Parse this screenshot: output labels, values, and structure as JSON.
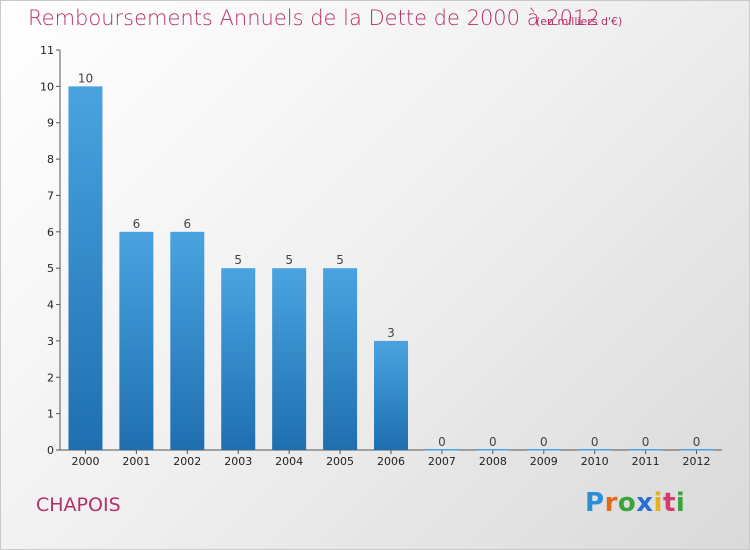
{
  "header": {
    "title": "Remboursements Annuels de la Dette de 2000 à 2012",
    "unit": "(en milliers d'€)"
  },
  "footer": {
    "commune": "CHAPOIS",
    "logo": "Proxiti"
  },
  "chart_data": {
    "type": "bar",
    "categories": [
      "2000",
      "2001",
      "2002",
      "2003",
      "2004",
      "2005",
      "2006",
      "2007",
      "2008",
      "2009",
      "2010",
      "2011",
      "2012"
    ],
    "values": [
      10,
      6,
      6,
      5,
      5,
      5,
      3,
      0,
      0,
      0,
      0,
      0,
      0
    ],
    "title": "Remboursements Annuels de la Dette de 2000 à 2012",
    "xlabel": "",
    "ylabel": "",
    "ylim": [
      0,
      11
    ],
    "yticks": [
      0,
      1,
      2,
      3,
      4,
      5,
      6,
      7,
      8,
      9,
      10,
      11
    ],
    "grid": false,
    "bar_color": "#4aa3e0",
    "bar_color_dark": "#1f6fb0",
    "title_color": "#b5306b"
  }
}
